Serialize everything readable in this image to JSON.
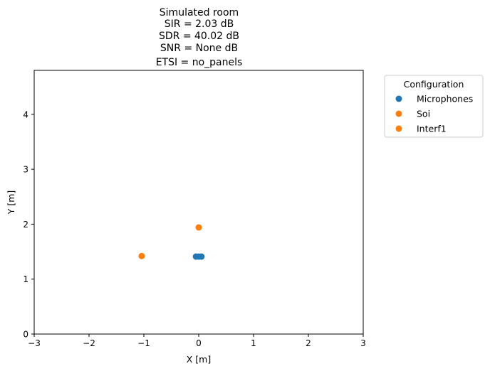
{
  "chart_data": {
    "type": "scatter",
    "title_lines": [
      "Simulated room",
      "SIR = 2.03 dB",
      "SDR = 40.02 dB",
      "SNR = None dB",
      "ETSI = no_panels"
    ],
    "xlabel": "X [m]",
    "ylabel": "Y [m]",
    "xlim": [
      -3,
      3
    ],
    "ylim": [
      0,
      4.8
    ],
    "xticks": [
      -3,
      -2,
      -1,
      0,
      1,
      2,
      3
    ],
    "yticks": [
      0,
      1,
      2,
      3,
      4
    ],
    "grid": false,
    "legend": {
      "title": "Configuration",
      "placement": "outside-top-right"
    },
    "series": [
      {
        "name": "Microphones",
        "color": "#1f77b4",
        "points": [
          [
            -0.05,
            1.41
          ],
          [
            0.0,
            1.41
          ],
          [
            0.05,
            1.41
          ]
        ]
      },
      {
        "name": "Soi",
        "color": "#ff7f0e",
        "points": [
          [
            0.0,
            1.94
          ]
        ]
      },
      {
        "name": "Interf1",
        "color": "#ff7f0e",
        "points": [
          [
            -1.04,
            1.42
          ]
        ]
      }
    ]
  }
}
